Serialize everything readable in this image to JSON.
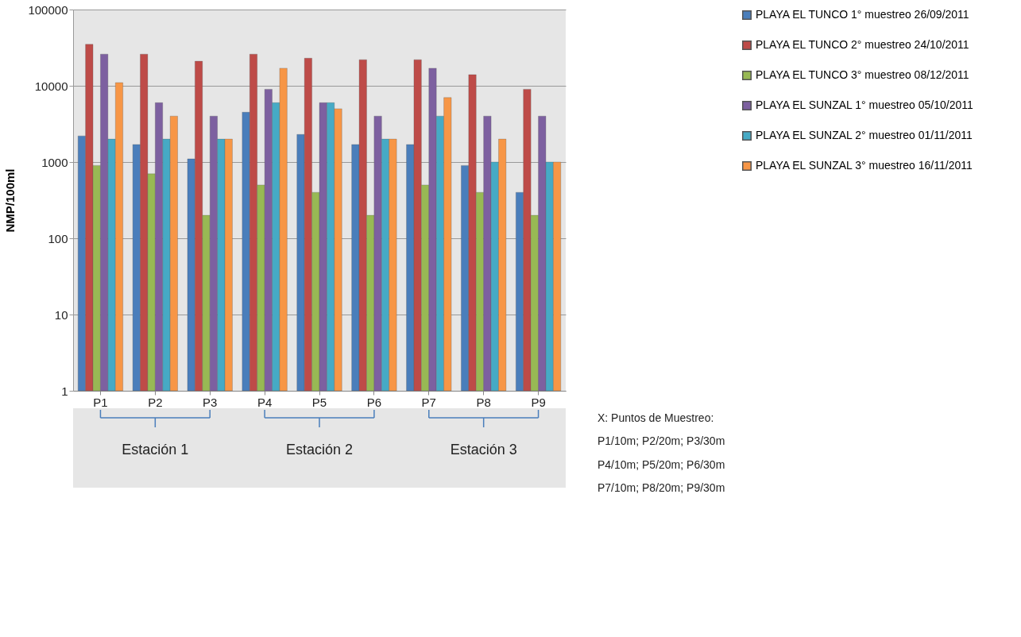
{
  "chart_data": {
    "type": "bar",
    "ylabel": "NMP/100ml",
    "categories": [
      "P1",
      "P2",
      "P3",
      "P4",
      "P5",
      "P6",
      "P7",
      "P8",
      "P9"
    ],
    "series": [
      {
        "name": "PLAYA EL TUNCO 1° muestreo 26/09/2011",
        "color": "#4a7ebb",
        "values": [
          2200,
          1700,
          1100,
          4500,
          2300,
          1700,
          1700,
          900,
          400
        ]
      },
      {
        "name": "PLAYA EL TUNCO 2° muestreo 24/10/2011",
        "color": "#be4b48",
        "values": [
          35000,
          26000,
          21000,
          26000,
          23000,
          22000,
          22000,
          14000,
          9000
        ]
      },
      {
        "name": "PLAYA EL TUNCO 3° muestreo 08/12/2011",
        "color": "#98b954",
        "values": [
          900,
          700,
          200,
          500,
          400,
          200,
          500,
          400,
          200
        ]
      },
      {
        "name": "PLAYA EL SUNZAL 1° muestreo 05/10/2011",
        "color": "#7d60a0",
        "values": [
          26000,
          6000,
          4000,
          9000,
          6000,
          4000,
          17000,
          4000,
          4000
        ]
      },
      {
        "name": "PLAYA EL SUNZAL 2° muestreo 01/11/2011",
        "color": "#46aac5",
        "values": [
          2000,
          2000,
          2000,
          6000,
          6000,
          2000,
          4000,
          1000,
          1000
        ]
      },
      {
        "name": "PLAYA EL SUNZAL 3° muestreo 16/11/2011",
        "color": "#f79646",
        "values": [
          11000,
          4000,
          2000,
          17000,
          5000,
          2000,
          7000,
          2000,
          1000
        ]
      }
    ],
    "log": true,
    "ylim": [
      1,
      100000
    ],
    "yticks": [
      1,
      10,
      100,
      1000,
      10000,
      100000
    ],
    "grid": "y",
    "legend": "right",
    "annotations": [
      "Estación 1",
      "Estación 2",
      "Estación 3",
      "X: Puntos de Muestreo:",
      "P1/10m; P2/20m; P3/30m",
      "P4/10m; P5/20m; P6/30m",
      "P7/10m; P8/20m; P9/30m"
    ]
  }
}
